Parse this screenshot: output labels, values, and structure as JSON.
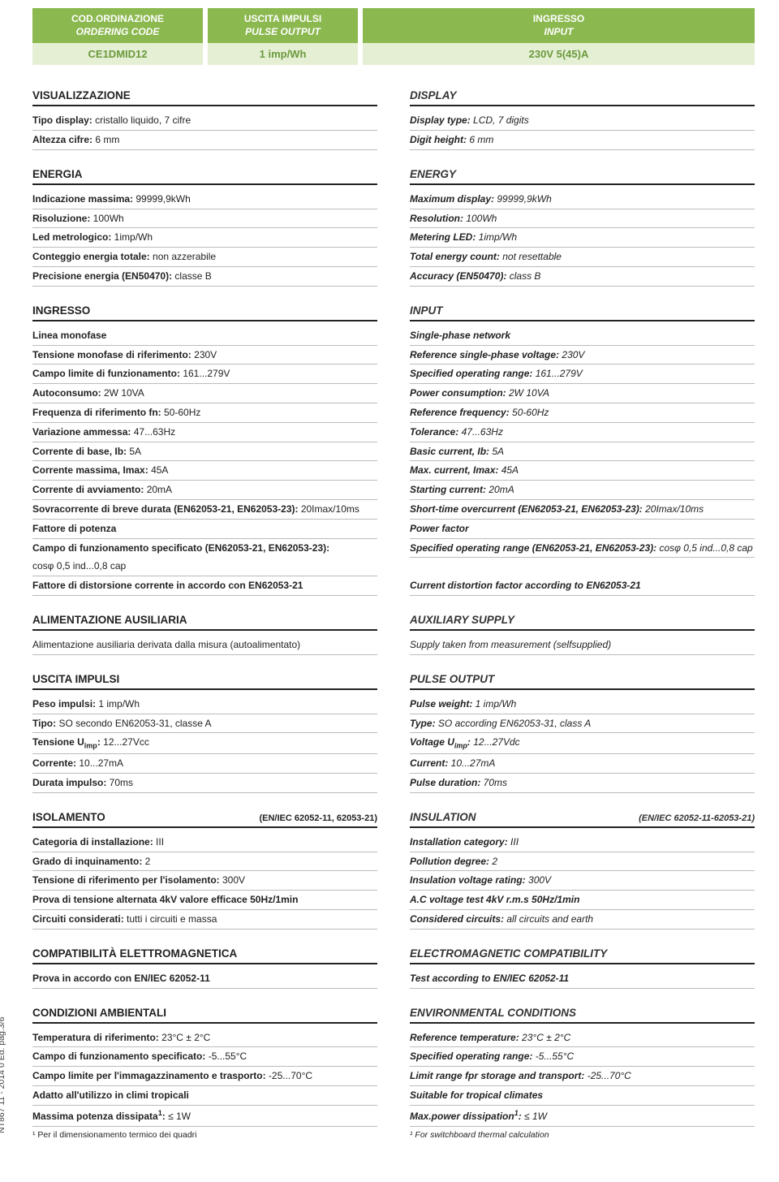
{
  "header": {
    "col1": {
      "l1": "COD.ORDINAZIONE",
      "l2": "ORDERING CODE",
      "val": "CE1DMID12"
    },
    "col2": {
      "l1": "USCITA IMPULSI",
      "l2": "PULSE OUTPUT",
      "val": "1 imp/Wh"
    },
    "col3": {
      "l1": "INGRESSO",
      "l2": "INPUT",
      "val": "230V 5(45)A"
    }
  },
  "sideLabel": "NT867  11 - 2014  0 Ed. pag.3/6",
  "left": {
    "s1": {
      "title": "VISUALIZZAZIONE",
      "rows": [
        {
          "k": "Tipo display:",
          "v": " cristallo liquido, 7 cifre"
        },
        {
          "k": "Altezza cifre:",
          "v": " 6 mm"
        }
      ]
    },
    "s2": {
      "title": "ENERGIA",
      "rows": [
        {
          "k": "Indicazione massima:",
          "v": " 99999,9kWh"
        },
        {
          "k": "Risoluzione:",
          "v": " 100Wh"
        },
        {
          "k": "Led metrologico:",
          "v": " 1imp/Wh"
        },
        {
          "k": "Conteggio energia totale:",
          "v": " non azzerabile"
        },
        {
          "k": "Precisione energia (EN50470):",
          "v": " classe B"
        }
      ]
    },
    "s3": {
      "title": "INGRESSO",
      "rows": [
        {
          "k": "Linea monofase",
          "v": ""
        },
        {
          "k": "Tensione monofase di riferimento:",
          "v": " 230V"
        },
        {
          "k": "Campo limite di funzionamento:",
          "v": " 161...279V"
        },
        {
          "k": "Autoconsumo:",
          "v": " 2W 10VA"
        },
        {
          "k": "Frequenza di riferimento fn:",
          "v": " 50-60Hz"
        },
        {
          "k": "Variazione ammessa:",
          "v": " 47...63Hz"
        },
        {
          "k": "Corrente di base, Ib:",
          "v": " 5A"
        },
        {
          "k": "Corrente massima, Imax:",
          "v": " 45A"
        },
        {
          "k": "Corrente di avviamento:",
          "v": " 20mA"
        },
        {
          "k": "Sovracorrente di breve durata (EN62053-21, EN62053-23):",
          "v": " 20Imax/10ms"
        },
        {
          "k": "Fattore di potenza",
          "v": ""
        },
        {
          "k": "Campo di funzionamento specificato (EN62053-21, EN62053-23):",
          "v": "",
          "noline": true
        },
        {
          "k": "",
          "v": "cosφ 0,5 ind...0,8 cap"
        },
        {
          "k": "Fattore di distorsione corrente in accordo con EN62053-21",
          "v": ""
        }
      ]
    },
    "s4": {
      "title": "ALIMENTAZIONE AUSILIARIA",
      "rows": [
        {
          "k": "",
          "v": "Alimentazione ausiliaria derivata dalla misura (autoalimentato)"
        }
      ]
    },
    "s5": {
      "title": "USCITA IMPULSI",
      "rows": [
        {
          "k": "Peso impulsi:",
          "v": " 1 imp/Wh"
        },
        {
          "k": "Tipo:",
          "v": " SO secondo EN62053-31, classe A"
        },
        {
          "k": "Tensione U",
          "sub": "imp",
          "post": ":",
          "v": " 12...27Vcc"
        },
        {
          "k": "Corrente:",
          "v": " 10...27mA"
        },
        {
          "k": "Durata impulso:",
          "v": " 70ms"
        }
      ]
    },
    "s6": {
      "title": "ISOLAMENTO",
      "note": "(EN/IEC 62052-11, 62053-21)",
      "rows": [
        {
          "k": "Categoria di installazione:",
          "v": " III"
        },
        {
          "k": "Grado di inquinamento:",
          "v": " 2"
        },
        {
          "k": "Tensione di riferimento per l'isolamento:",
          "v": " 300V"
        },
        {
          "k": "Prova di tensione alternata 4kV valore efficace 50Hz/1min",
          "v": ""
        },
        {
          "k": "Circuiti considerati:",
          "v": " tutti i circuiti e massa"
        }
      ]
    },
    "s7": {
      "title": "COMPATIBILITÀ ELETTROMAGNETICA",
      "rows": [
        {
          "k": "Prova in accordo con EN/IEC 62052-11",
          "v": ""
        }
      ]
    },
    "s8": {
      "title": "CONDIZIONI AMBIENTALI",
      "rows": [
        {
          "k": "Temperatura di riferimento:",
          "v": " 23°C ± 2°C"
        },
        {
          "k": "Campo di funzionamento specificato:",
          "v": " -5...55°C"
        },
        {
          "k": "Campo limite per l'immagazzinamento e trasporto:",
          "v": " -25...70°C"
        },
        {
          "k": "Adatto all'utilizzo in climi tropicali",
          "v": ""
        },
        {
          "k": "Massima potenza dissipata",
          "sup": "1",
          "post": ":",
          "v": " ≤ 1W"
        }
      ],
      "footnote": "¹ Per il dimensionamento termico dei quadri"
    }
  },
  "right": {
    "s1": {
      "title": "DISPLAY",
      "rows": [
        {
          "k": "Display type:",
          "v": " LCD, 7 digits"
        },
        {
          "k": "Digit height:",
          "v": " 6 mm"
        }
      ]
    },
    "s2": {
      "title": "ENERGY",
      "rows": [
        {
          "k": "Maximum display:",
          "v": " 99999,9kWh"
        },
        {
          "k": "Resolution:",
          "v": " 100Wh"
        },
        {
          "k": "Metering LED:",
          "v": " 1imp/Wh"
        },
        {
          "k": "Total energy count:",
          "v": " not resettable"
        },
        {
          "k": "Accuracy (EN50470):",
          "v": " class B"
        }
      ]
    },
    "s3": {
      "title": "INPUT",
      "rows": [
        {
          "k": "Single-phase network",
          "v": ""
        },
        {
          "k": "Reference single-phase voltage:",
          "v": " 230V"
        },
        {
          "k": "Specified operating range:",
          "v": " 161...279V"
        },
        {
          "k": "Power consumption:",
          "v": " 2W 10VA"
        },
        {
          "k": "Reference frequency:",
          "v": " 50-60Hz"
        },
        {
          "k": "Tolerance:",
          "v": " 47...63Hz"
        },
        {
          "k": "Basic current, Ib:",
          "v": " 5A"
        },
        {
          "k": "Max. current, Imax:",
          "v": " 45A"
        },
        {
          "k": "Starting current:",
          "v": " 20mA"
        },
        {
          "k": "Short-time overcurrent (EN62053-21, EN62053-23):",
          "v": " 20Imax/10ms"
        },
        {
          "k": "Power factor",
          "v": ""
        },
        {
          "k": "Specified operating range (EN62053-21, EN62053-23):",
          "v": " cosφ 0,5 ind...0,8 cap"
        },
        {
          "k": "",
          "v": "",
          "spacer": true
        },
        {
          "k": "Current distortion factor  according to EN62053-21",
          "v": ""
        }
      ]
    },
    "s4": {
      "title": "AUXILIARY SUPPLY",
      "rows": [
        {
          "k": "",
          "v": "Supply taken from measurement (selfsupplied)"
        }
      ]
    },
    "s5": {
      "title": "PULSE OUTPUT",
      "rows": [
        {
          "k": "Pulse weight:",
          "v": " 1 imp/Wh"
        },
        {
          "k": "Type:",
          "v": " SO according EN62053-31, class A"
        },
        {
          "k": "Voltage U",
          "sub": "imp",
          "post": ":",
          "v": " 12...27Vdc"
        },
        {
          "k": "Current:",
          "v": " 10...27mA"
        },
        {
          "k": "Pulse duration:",
          "v": " 70ms"
        }
      ]
    },
    "s6": {
      "title": "INSULATION",
      "note": "(EN/IEC 62052-11-62053-21)",
      "rows": [
        {
          "k": "Installation category:",
          "v": " III"
        },
        {
          "k": "Pollution degree:",
          "v": " 2"
        },
        {
          "k": "Insulation voltage rating:",
          "v": " 300V"
        },
        {
          "k": "A.C voltage test 4kV r.m.s 50Hz/1min",
          "v": ""
        },
        {
          "k": "Considered circuits:",
          "v": " all circuits and earth"
        }
      ]
    },
    "s7": {
      "title": "ELECTROMAGNETIC COMPATIBILITY",
      "rows": [
        {
          "k": "Test according to EN/IEC 62052-11",
          "v": ""
        }
      ]
    },
    "s8": {
      "title": "ENVIRONMENTAL CONDITIONS",
      "rows": [
        {
          "k": "Reference temperature:",
          "v": " 23°C ± 2°C"
        },
        {
          "k": "Specified operating range:",
          "v": " -5...55°C"
        },
        {
          "k": "Limit range fpr storage and transport:",
          "v": " -25...70°C"
        },
        {
          "k": "Suitable for tropical climates",
          "v": ""
        },
        {
          "k": "Max.power dissipation",
          "sup": "1",
          "post": ":",
          "v": " ≤ 1W"
        }
      ],
      "footnote": "¹ For switchboard thermal calculation"
    }
  }
}
